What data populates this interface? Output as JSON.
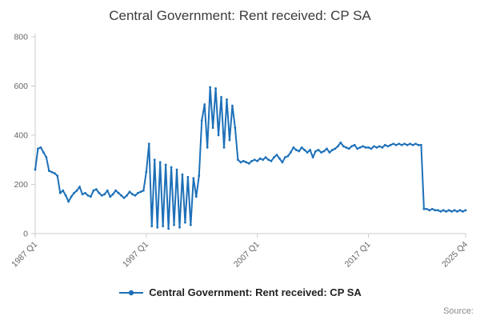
{
  "title": "Central Government: Rent received: CP SA",
  "legend": {
    "label": "Central Government: Rent received: CP SA"
  },
  "source_label": "Source:",
  "colors": {
    "line": "#1d70b8",
    "axis": "#cccccc",
    "tick_text": "#666666",
    "title_text": "#3c3c3c"
  },
  "chart_data": {
    "type": "line",
    "title": "Central Government: Rent received: CP SA",
    "xlabel": "",
    "ylabel": "",
    "ylim": [
      0,
      800
    ],
    "y_ticks": [
      0,
      200,
      400,
      600,
      800
    ],
    "grid": false,
    "legend_position": "bottom",
    "x_tick_labels": [
      "1987 Q1",
      "1997 Q1",
      "2007 Q1",
      "2017 Q1",
      "2025 Q4"
    ],
    "x_tick_indices": [
      0,
      40,
      80,
      120,
      155
    ],
    "x_start": "1987 Q1",
    "x_end": "2025 Q4",
    "x_frequency": "quarterly",
    "series": [
      {
        "name": "Central Government: Rent received: CP SA",
        "color": "#1d70b8",
        "values": [
          260,
          345,
          350,
          330,
          310,
          255,
          250,
          245,
          235,
          165,
          175,
          155,
          130,
          150,
          165,
          175,
          190,
          160,
          165,
          155,
          150,
          175,
          180,
          165,
          155,
          160,
          175,
          150,
          160,
          175,
          165,
          155,
          145,
          155,
          170,
          160,
          155,
          165,
          170,
          175,
          250,
          365,
          30,
          300,
          25,
          290,
          30,
          280,
          20,
          270,
          35,
          260,
          25,
          240,
          45,
          230,
          35,
          225,
          150,
          235,
          460,
          525,
          350,
          595,
          430,
          590,
          400,
          555,
          350,
          545,
          380,
          520,
          430,
          300,
          290,
          295,
          290,
          285,
          295,
          300,
          295,
          305,
          300,
          310,
          300,
          295,
          310,
          320,
          305,
          290,
          310,
          315,
          330,
          350,
          340,
          335,
          350,
          340,
          330,
          340,
          310,
          335,
          340,
          330,
          335,
          345,
          330,
          340,
          345,
          355,
          370,
          355,
          350,
          345,
          355,
          360,
          345,
          350,
          355,
          350,
          350,
          345,
          355,
          350,
          355,
          350,
          360,
          355,
          360,
          365,
          360,
          365,
          360,
          365,
          360,
          365,
          360,
          365,
          360,
          360,
          100,
          100,
          95,
          100,
          95,
          95,
          90,
          95,
          90,
          95,
          90,
          95,
          90,
          95,
          90,
          95
        ]
      }
    ]
  }
}
